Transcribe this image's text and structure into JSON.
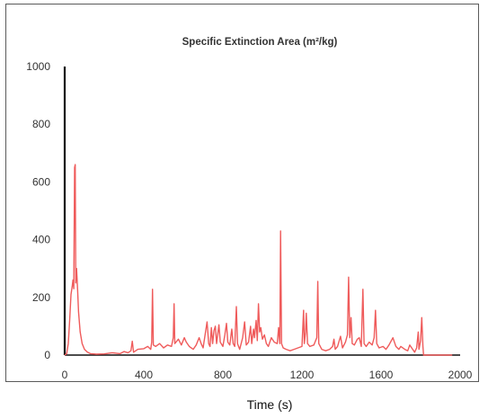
{
  "chart_data": {
    "type": "line",
    "title": "Specific Extinction Area (m²/kg)",
    "xlabel": "Time (s)",
    "ylabel": "",
    "xlim": [
      0,
      2000
    ],
    "ylim": [
      0,
      1000
    ],
    "xticks": [
      "0",
      "400",
      "800",
      "1200",
      "1600",
      "2000"
    ],
    "yticks": [
      "0",
      "200",
      "400",
      "600",
      "800",
      "1000"
    ],
    "grid": false,
    "legend": "none",
    "series": [
      {
        "color": "#ef5b5b",
        "points": [
          [
            0,
            0
          ],
          [
            10,
            5
          ],
          [
            18,
            40
          ],
          [
            25,
            120
          ],
          [
            32,
            210
          ],
          [
            38,
            240
          ],
          [
            42,
            260
          ],
          [
            46,
            230
          ],
          [
            50,
            650
          ],
          [
            53,
            660
          ],
          [
            56,
            250
          ],
          [
            60,
            300
          ],
          [
            65,
            230
          ],
          [
            70,
            150
          ],
          [
            78,
            80
          ],
          [
            88,
            40
          ],
          [
            100,
            20
          ],
          [
            115,
            10
          ],
          [
            130,
            5
          ],
          [
            160,
            3
          ],
          [
            200,
            4
          ],
          [
            240,
            8
          ],
          [
            280,
            5
          ],
          [
            300,
            12
          ],
          [
            320,
            8
          ],
          [
            335,
            15
          ],
          [
            342,
            48
          ],
          [
            348,
            10
          ],
          [
            370,
            20
          ],
          [
            400,
            22
          ],
          [
            420,
            30
          ],
          [
            435,
            20
          ],
          [
            440,
            45
          ],
          [
            444,
            228
          ],
          [
            448,
            35
          ],
          [
            460,
            30
          ],
          [
            480,
            40
          ],
          [
            500,
            25
          ],
          [
            520,
            35
          ],
          [
            540,
            30
          ],
          [
            549,
            60
          ],
          [
            553,
            178
          ],
          [
            557,
            40
          ],
          [
            575,
            55
          ],
          [
            590,
            35
          ],
          [
            605,
            60
          ],
          [
            615,
            45
          ],
          [
            630,
            30
          ],
          [
            650,
            20
          ],
          [
            665,
            35
          ],
          [
            680,
            60
          ],
          [
            690,
            40
          ],
          [
            700,
            25
          ],
          [
            710,
            70
          ],
          [
            720,
            115
          ],
          [
            728,
            40
          ],
          [
            735,
            30
          ],
          [
            742,
            95
          ],
          [
            748,
            40
          ],
          [
            755,
            85
          ],
          [
            762,
            100
          ],
          [
            768,
            40
          ],
          [
            780,
            105
          ],
          [
            787,
            45
          ],
          [
            800,
            30
          ],
          [
            810,
            70
          ],
          [
            818,
            110
          ],
          [
            825,
            45
          ],
          [
            835,
            35
          ],
          [
            845,
            90
          ],
          [
            852,
            40
          ],
          [
            860,
            30
          ],
          [
            868,
            168
          ],
          [
            874,
            40
          ],
          [
            885,
            20
          ],
          [
            900,
            60
          ],
          [
            910,
            115
          ],
          [
            918,
            35
          ],
          [
            930,
            45
          ],
          [
            940,
            100
          ],
          [
            946,
            40
          ],
          [
            955,
            90
          ],
          [
            960,
            60
          ],
          [
            968,
            120
          ],
          [
            974,
            50
          ],
          [
            980,
            178
          ],
          [
            986,
            80
          ],
          [
            992,
            95
          ],
          [
            1000,
            55
          ],
          [
            1010,
            70
          ],
          [
            1020,
            40
          ],
          [
            1030,
            30
          ],
          [
            1045,
            60
          ],
          [
            1060,
            45
          ],
          [
            1075,
            40
          ],
          [
            1082,
            95
          ],
          [
            1088,
            40
          ],
          [
            1092,
            430
          ],
          [
            1097,
            40
          ],
          [
            1105,
            25
          ],
          [
            1120,
            20
          ],
          [
            1140,
            15
          ],
          [
            1160,
            20
          ],
          [
            1180,
            25
          ],
          [
            1200,
            30
          ],
          [
            1208,
            155
          ],
          [
            1212,
            40
          ],
          [
            1218,
            80
          ],
          [
            1222,
            145
          ],
          [
            1228,
            40
          ],
          [
            1240,
            30
          ],
          [
            1260,
            35
          ],
          [
            1275,
            60
          ],
          [
            1280,
            255
          ],
          [
            1285,
            40
          ],
          [
            1300,
            20
          ],
          [
            1320,
            15
          ],
          [
            1340,
            20
          ],
          [
            1355,
            30
          ],
          [
            1362,
            55
          ],
          [
            1368,
            20
          ],
          [
            1380,
            30
          ],
          [
            1395,
            65
          ],
          [
            1405,
            25
          ],
          [
            1420,
            45
          ],
          [
            1430,
            70
          ],
          [
            1436,
            270
          ],
          [
            1442,
            60
          ],
          [
            1448,
            130
          ],
          [
            1454,
            40
          ],
          [
            1465,
            35
          ],
          [
            1480,
            55
          ],
          [
            1490,
            60
          ],
          [
            1500,
            30
          ],
          [
            1508,
            228
          ],
          [
            1514,
            40
          ],
          [
            1525,
            30
          ],
          [
            1540,
            45
          ],
          [
            1555,
            35
          ],
          [
            1565,
            60
          ],
          [
            1572,
            155
          ],
          [
            1578,
            40
          ],
          [
            1590,
            25
          ],
          [
            1610,
            30
          ],
          [
            1625,
            20
          ],
          [
            1640,
            35
          ],
          [
            1660,
            60
          ],
          [
            1675,
            30
          ],
          [
            1690,
            20
          ],
          [
            1700,
            30
          ],
          [
            1720,
            20
          ],
          [
            1735,
            15
          ],
          [
            1745,
            35
          ],
          [
            1760,
            20
          ],
          [
            1770,
            10
          ],
          [
            1780,
            25
          ],
          [
            1788,
            80
          ],
          [
            1792,
            20
          ],
          [
            1800,
            50
          ],
          [
            1806,
            130
          ],
          [
            1812,
            30
          ],
          [
            1815,
            0
          ],
          [
            1830,
            0
          ],
          [
            1900,
            0
          ],
          [
            1960,
            0
          ]
        ]
      }
    ]
  }
}
